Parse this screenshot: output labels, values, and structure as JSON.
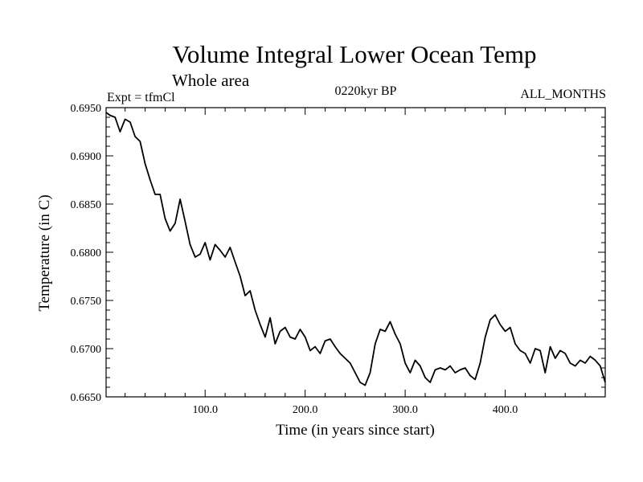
{
  "header": {
    "title": "Volume Integral Lower Ocean Temp",
    "subtitle": "Whole area",
    "experiment": "Expt = tfmCl",
    "period": "0220kyr BP",
    "months": "ALL_MONTHS"
  },
  "chart_data": {
    "type": "line",
    "title": "Volume Integral Lower Ocean Temp",
    "subtitle": "Whole area",
    "xlabel": "Time (in years since start)",
    "ylabel": "Temperature (in C)",
    "xlim": [
      1,
      500
    ],
    "ylim": [
      0.665,
      0.695
    ],
    "xticks": [
      100,
      200,
      300,
      400
    ],
    "xtick_labels": [
      "100.0",
      "200.0",
      "300.0",
      "400.0"
    ],
    "yticks": [
      0.665,
      0.67,
      0.675,
      0.68,
      0.685,
      0.69,
      0.695
    ],
    "ytick_labels": [
      "0.6650",
      "0.6700",
      "0.6750",
      "0.6800",
      "0.6850",
      "0.6900",
      "0.6950"
    ],
    "grid": false,
    "colors": {
      "line": "#000000",
      "axes": "#000000"
    },
    "series": [
      {
        "x": [
          1,
          5,
          10,
          15,
          20,
          25,
          30,
          35,
          40,
          45,
          50,
          55,
          60,
          65,
          70,
          75,
          80,
          85,
          90,
          95,
          100,
          105,
          110,
          115,
          120,
          125,
          130,
          135,
          140,
          145,
          150,
          155,
          160,
          165,
          170,
          175,
          180,
          185,
          190,
          195,
          200,
          205,
          210,
          215,
          220,
          225,
          230,
          235,
          240,
          245,
          250,
          255,
          260,
          265,
          270,
          275,
          280,
          285,
          290,
          295,
          300,
          305,
          310,
          315,
          320,
          325,
          330,
          335,
          340,
          345,
          350,
          355,
          360,
          365,
          370,
          375,
          380,
          385,
          390,
          395,
          400,
          405,
          410,
          415,
          420,
          425,
          430,
          435,
          440,
          445,
          450,
          455,
          460,
          465,
          470,
          475,
          480,
          485,
          490,
          495,
          500
        ],
        "y": [
          0.6945,
          0.6942,
          0.694,
          0.6925,
          0.6938,
          0.6935,
          0.692,
          0.6915,
          0.6892,
          0.6875,
          0.686,
          0.686,
          0.6835,
          0.6822,
          0.683,
          0.6855,
          0.6832,
          0.6808,
          0.6795,
          0.6798,
          0.681,
          0.6792,
          0.6808,
          0.6802,
          0.6795,
          0.6805,
          0.679,
          0.6775,
          0.6755,
          0.676,
          0.674,
          0.6725,
          0.6712,
          0.6732,
          0.6705,
          0.6718,
          0.6722,
          0.6712,
          0.671,
          0.672,
          0.6712,
          0.6698,
          0.6702,
          0.6695,
          0.6708,
          0.671,
          0.6702,
          0.6695,
          0.669,
          0.6685,
          0.6675,
          0.6665,
          0.6662,
          0.6675,
          0.6705,
          0.672,
          0.6718,
          0.6728,
          0.6715,
          0.6705,
          0.6685,
          0.6675,
          0.6688,
          0.6682,
          0.667,
          0.6665,
          0.6678,
          0.668,
          0.6678,
          0.6682,
          0.6675,
          0.6678,
          0.668,
          0.6672,
          0.6668,
          0.6685,
          0.6712,
          0.673,
          0.6735,
          0.6725,
          0.6718,
          0.6722,
          0.6705,
          0.6698,
          0.6695,
          0.6685,
          0.67,
          0.6698,
          0.6675,
          0.6702,
          0.669,
          0.6698,
          0.6695,
          0.6685,
          0.6682,
          0.6688,
          0.6685,
          0.6692,
          0.6688,
          0.6682,
          0.6665
        ]
      }
    ]
  }
}
